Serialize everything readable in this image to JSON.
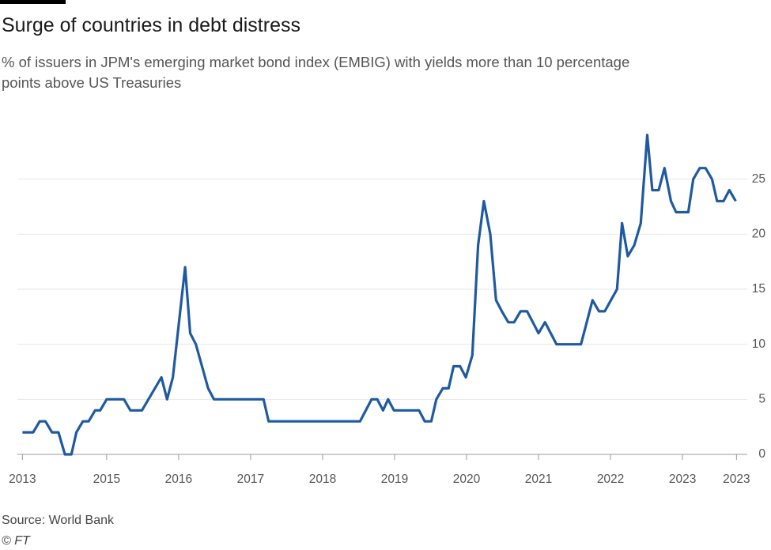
{
  "chart_data": {
    "type": "line",
    "title": "Surge of countries in debt distress",
    "subtitle": "% of issuers in JPM's emerging market bond index (EMBIG) with yields more than 10 percentage points above US Treasuries",
    "source": "Source: World Bank",
    "credit": "© FT",
    "color": "#1f5aa0",
    "x": [
      2013.83,
      2013.98,
      2014.07,
      2014.15,
      2014.24,
      2014.33,
      2014.42,
      2014.51,
      2014.58,
      2014.67,
      2014.75,
      2014.84,
      2014.91,
      2015.0,
      2015.24,
      2015.33,
      2015.49,
      2015.76,
      2015.84,
      2015.92,
      2016.09,
      2016.16,
      2016.24,
      2016.41,
      2016.49,
      2017.18,
      2017.25,
      2018.52,
      2018.68,
      2018.76,
      2018.84,
      2018.91,
      2018.99,
      2019.34,
      2019.42,
      2019.51,
      2019.58,
      2019.67,
      2019.75,
      2019.82,
      2019.91,
      2019.99,
      2020.08,
      2020.16,
      2020.24,
      2020.33,
      2020.41,
      2020.49,
      2020.58,
      2020.66,
      2020.75,
      2020.84,
      2020.92,
      2021.0,
      2021.09,
      2021.25,
      2021.59,
      2021.75,
      2021.84,
      2021.92,
      2022.09,
      2022.16,
      2022.24,
      2022.33,
      2022.42,
      2022.51,
      2022.58,
      2022.67,
      2022.75,
      2022.84,
      2022.91,
      2023.08,
      2023.15,
      2023.24,
      2023.32,
      2023.41,
      2023.48,
      2023.57,
      2023.65,
      2023.74
    ],
    "values": [
      2,
      2,
      3,
      3,
      2,
      2,
      0,
      0,
      2,
      3,
      3,
      4,
      4,
      5,
      5,
      4,
      4,
      7,
      5,
      7,
      17,
      11,
      10,
      6,
      5,
      5,
      3,
      3,
      5,
      5,
      4,
      5,
      4,
      4,
      3,
      3,
      5,
      6,
      6,
      8,
      8,
      7,
      9,
      19,
      23,
      20,
      14,
      13,
      12,
      12,
      13,
      13,
      12,
      11,
      12,
      10,
      10,
      14,
      13,
      13,
      15,
      21,
      18,
      19,
      21,
      29,
      24,
      24,
      26,
      23,
      22,
      22,
      25,
      26,
      26,
      25,
      23,
      23,
      24,
      23
    ],
    "xlim": [
      2013.76,
      2023.79
    ],
    "xticks": [
      {
        "value": 2013.83,
        "label": "2013"
      },
      2015,
      2016,
      2017,
      2018,
      2019,
      2020,
      2021,
      2022,
      2023,
      {
        "value": 2023.75,
        "label": "2023"
      }
    ],
    "ylim": [
      0,
      30
    ],
    "yticks": [
      0,
      5,
      10,
      15,
      20,
      25
    ],
    "grid": true
  }
}
